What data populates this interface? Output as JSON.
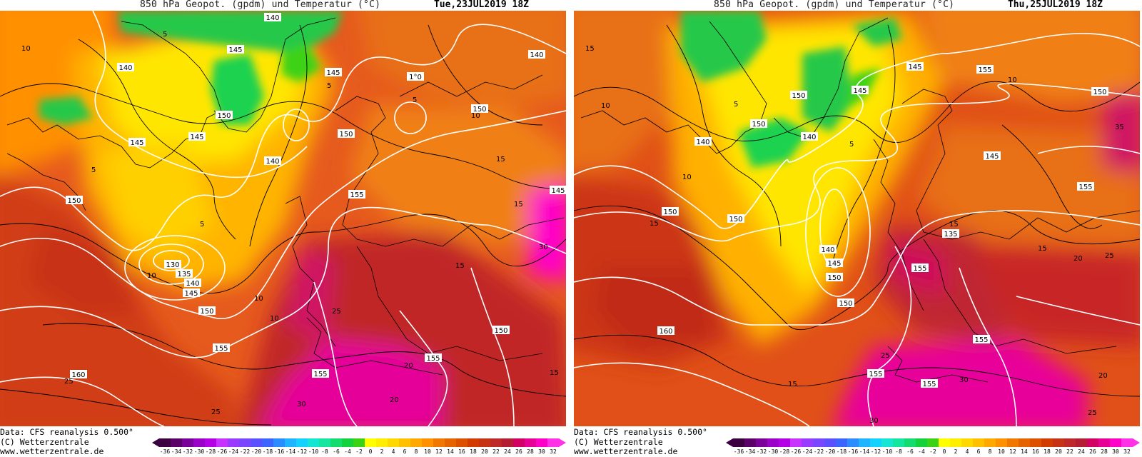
{
  "panels": [
    {
      "title": "850 hPa Geopot. (gpdm) und Temperatur (°C)",
      "valid_time": "Tue,23JUL2019 18Z",
      "geopotential_labels": [
        "140",
        "145",
        "140",
        "145",
        "150",
        "140",
        "145",
        "145",
        "140",
        "150",
        "150",
        "140",
        "150",
        "155",
        "145",
        "150",
        "130",
        "135",
        "140",
        "145",
        "150",
        "155",
        "160",
        "155",
        "155",
        "150",
        "1°0"
      ],
      "temperature_labels": [
        "10",
        "5",
        "5",
        "5",
        "10",
        "5",
        "5",
        "5",
        "10",
        "15",
        "10",
        "5",
        "15",
        "10",
        "15",
        "15",
        "25",
        "15",
        "20",
        "15",
        "25",
        "20",
        "25",
        "20",
        "30",
        "25",
        "15",
        "25",
        "30"
      ]
    },
    {
      "title": "850 hPa Geopot. (gpdm) und Temperatur (°C)",
      "valid_time": "Thu,25JUL2019 18Z",
      "geopotential_labels": [
        "145",
        "155",
        "150",
        "150",
        "145",
        "140",
        "150",
        "140",
        "145",
        "150",
        "150",
        "155",
        "135",
        "140",
        "145",
        "150",
        "155",
        "150",
        "160",
        "155",
        "155",
        "155"
      ],
      "temperature_labels": [
        "15",
        "10",
        "10",
        "5",
        "5",
        "5",
        "10",
        "10",
        "15",
        "15",
        "15",
        "20",
        "25",
        "15",
        "25",
        "20",
        "15",
        "20",
        "25",
        "30",
        "25",
        "20",
        "25",
        "30",
        "30",
        "35",
        "15"
      ]
    }
  ],
  "credits": {
    "data_source": "Data: CFS reanalysis 0.500°",
    "copyright": "(C) Wetterzentrale",
    "url": "www.wetterzentrale.de"
  },
  "color_scale": {
    "ticks": [
      "-36",
      "-34",
      "-32",
      "-30",
      "-28",
      "-26",
      "-24",
      "-22",
      "-20",
      "-18",
      "-16",
      "-14",
      "-12",
      "-10",
      "-8",
      "-6",
      "-4",
      "-2",
      "0",
      "2",
      "4",
      "6",
      "8",
      "10",
      "12",
      "14",
      "16",
      "18",
      "20",
      "22",
      "24",
      "26",
      "28",
      "30",
      "32"
    ],
    "colors": [
      "#3a0040",
      "#5a0066",
      "#7a0099",
      "#9a00c8",
      "#b400e6",
      "#c832ff",
      "#9a3cff",
      "#7b46ff",
      "#5a50ff",
      "#3c64ff",
      "#2a8cff",
      "#1eb4ff",
      "#14d2ff",
      "#14e6d2",
      "#14e6a0",
      "#14dc6e",
      "#14d23c",
      "#3cd214",
      "#ffff00",
      "#ffee00",
      "#ffd800",
      "#ffc000",
      "#ffa800",
      "#ff9000",
      "#f07800",
      "#e66400",
      "#dc5000",
      "#d23c00",
      "#c83214",
      "#be2828",
      "#b41e32",
      "#d20064",
      "#e60096",
      "#ff00c8",
      "#ff32e6"
    ],
    "arrow_left": "#3a0040",
    "arrow_right": "#ff32e6"
  },
  "colors": {
    "contour_geopotential": "#ffffff",
    "contour_temperature": "#000000",
    "coastline": "#000000"
  }
}
